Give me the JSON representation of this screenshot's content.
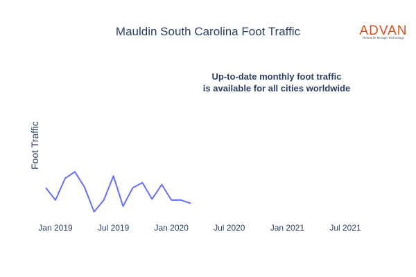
{
  "chart_data": {
    "type": "line",
    "title": "Mauldin South Carolina Foot Traffic",
    "ylabel": "Foot Traffic",
    "xlabel": "",
    "x_tick_labels": [
      "Jan 2019",
      "Jul 2019",
      "Jan 2020",
      "Jul 2020",
      "Jan 2021",
      "Jul 2021"
    ],
    "x": [
      "2018-12",
      "2019-01",
      "2019-02",
      "2019-03",
      "2019-04",
      "2019-05",
      "2019-06",
      "2019-07",
      "2019-08",
      "2019-09",
      "2019-10",
      "2019-11",
      "2019-12",
      "2020-01",
      "2020-02",
      "2020-03",
      "2020-04"
    ],
    "series": [
      {
        "color": "#636efa",
        "values": [
          0.57,
          0.31,
          0.77,
          0.91,
          0.59,
          0.06,
          0.31,
          0.82,
          0.18,
          0.57,
          0.68,
          0.33,
          0.64,
          0.31,
          0.31,
          0.24,
          null
        ]
      }
    ],
    "grid": false,
    "legend": "none",
    "annotation": {
      "line1": "Up-to-date monthly foot traffic",
      "line2": "is available for all cities worldwide"
    },
    "logo": {
      "word": "ADVAN",
      "tagline": "Research through Technology",
      "color": "#d2501f"
    }
  }
}
